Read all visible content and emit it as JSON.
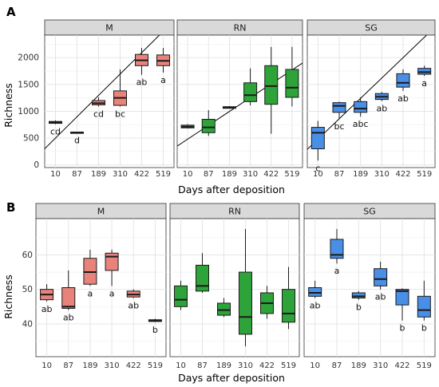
{
  "colors": {
    "M": "#e8837c",
    "RN": "#2ea33a",
    "SG": "#4a8fe6"
  },
  "chart_data": [
    {
      "type": "box",
      "panel_label": "A",
      "xlabel": "Days after deposition",
      "ylabel": "Richness",
      "ylim": [
        -50,
        2420
      ],
      "yticks": [
        0,
        500,
        1000,
        1500,
        2000
      ],
      "categories": [
        "10",
        "87",
        "189",
        "310",
        "422",
        "519"
      ],
      "facets": [
        {
          "name": "M",
          "trendline": [
            [
              10,
              500
            ],
            [
              519,
              2490
            ]
          ],
          "boxes": [
            {
              "x": "10",
              "min": 760,
              "q1": 775,
              "median": 790,
              "q3": 810,
              "max": 830,
              "label": "cd"
            },
            {
              "x": "87",
              "min": 595,
              "q1": 600,
              "median": 605,
              "q3": 610,
              "max": 615,
              "label": "d"
            },
            {
              "x": "189",
              "min": 1090,
              "q1": 1120,
              "median": 1150,
              "q3": 1200,
              "max": 1260,
              "label": "cd"
            },
            {
              "x": "310",
              "min": 1090,
              "q1": 1110,
              "median": 1250,
              "q3": 1380,
              "max": 1780,
              "label": "bc"
            },
            {
              "x": "422",
              "min": 1680,
              "q1": 1850,
              "median": 1950,
              "q3": 2060,
              "max": 2180,
              "label": "ab"
            },
            {
              "x": "519",
              "min": 1720,
              "q1": 1850,
              "median": 1940,
              "q3": 2050,
              "max": 2180,
              "label": "a"
            }
          ]
        },
        {
          "name": "RN",
          "trendline": [
            [
              10,
              480
            ],
            [
              519,
              1770
            ]
          ],
          "boxes": [
            {
              "x": "10",
              "min": 680,
              "q1": 690,
              "median": 710,
              "q3": 740,
              "max": 760,
              "label": ""
            },
            {
              "x": "87",
              "min": 540,
              "q1": 600,
              "median": 700,
              "q3": 850,
              "max": 1020,
              "label": ""
            },
            {
              "x": "189",
              "min": 1050,
              "q1": 1055,
              "median": 1070,
              "q3": 1085,
              "max": 1095,
              "label": ""
            },
            {
              "x": "310",
              "min": 1110,
              "q1": 1180,
              "median": 1300,
              "q3": 1530,
              "max": 1800,
              "label": ""
            },
            {
              "x": "422",
              "min": 580,
              "q1": 1130,
              "median": 1470,
              "q3": 1850,
              "max": 2200,
              "label": ""
            },
            {
              "x": "519",
              "min": 1090,
              "q1": 1260,
              "median": 1440,
              "q3": 1780,
              "max": 2200,
              "label": ""
            }
          ]
        },
        {
          "name": "SG",
          "trendline": [
            [
              10,
              480
            ],
            [
              519,
              2380
            ]
          ],
          "boxes": [
            {
              "x": "10",
              "min": 80,
              "q1": 300,
              "median": 600,
              "q3": 700,
              "max": 820,
              "label": "c"
            },
            {
              "x": "87",
              "min": 860,
              "q1": 980,
              "median": 1100,
              "q3": 1160,
              "max": 1180,
              "label": "bc"
            },
            {
              "x": "189",
              "min": 900,
              "q1": 980,
              "median": 1050,
              "q3": 1180,
              "max": 1260,
              "label": "abc"
            },
            {
              "x": "310",
              "min": 1190,
              "q1": 1220,
              "median": 1270,
              "q3": 1330,
              "max": 1360,
              "label": "ab"
            },
            {
              "x": "422",
              "min": 1380,
              "q1": 1450,
              "median": 1530,
              "q3": 1700,
              "max": 1780,
              "label": "ab"
            },
            {
              "x": "519",
              "min": 1660,
              "q1": 1690,
              "median": 1730,
              "q3": 1800,
              "max": 1850,
              "label": "a"
            }
          ]
        }
      ]
    },
    {
      "type": "box",
      "panel_label": "B",
      "xlabel": "Days after deposition",
      "ylabel": "Richness",
      "ylim": [
        30.5,
        70.5
      ],
      "yticks": [
        40,
        50,
        60
      ],
      "categories": [
        "10",
        "87",
        "189",
        "310",
        "422",
        "519"
      ],
      "facets": [
        {
          "name": "M",
          "boxes": [
            {
              "x": "10",
              "min": 46.5,
              "q1": 47,
              "median": 48.5,
              "q3": 50,
              "max": 51.5,
              "label": "ab"
            },
            {
              "x": "87",
              "min": 44,
              "q1": 44.5,
              "median": 45,
              "q3": 50.5,
              "max": 55.5,
              "label": "ab"
            },
            {
              "x": "189",
              "min": 51,
              "q1": 51.5,
              "median": 55,
              "q3": 59,
              "max": 61.5,
              "label": "a"
            },
            {
              "x": "310",
              "min": 51,
              "q1": 55.5,
              "median": 59.5,
              "q3": 60.5,
              "max": 61.5,
              "label": "a"
            },
            {
              "x": "422",
              "min": 47.5,
              "q1": 47.8,
              "median": 48.5,
              "q3": 49.5,
              "max": 50,
              "label": "ab"
            },
            {
              "x": "519",
              "min": 40.5,
              "q1": 40.7,
              "median": 41,
              "q3": 41.2,
              "max": 41.5,
              "label": "b"
            }
          ]
        },
        {
          "name": "RN",
          "boxes": [
            {
              "x": "10",
              "min": 44,
              "q1": 45,
              "median": 47,
              "q3": 51,
              "max": 52.5,
              "label": ""
            },
            {
              "x": "87",
              "min": 49,
              "q1": 49.5,
              "median": 51,
              "q3": 57,
              "max": 60.5,
              "label": ""
            },
            {
              "x": "189",
              "min": 42,
              "q1": 42.5,
              "median": 44,
              "q3": 46,
              "max": 47.5,
              "label": ""
            },
            {
              "x": "310",
              "min": 33.5,
              "q1": 37,
              "median": 42,
              "q3": 55,
              "max": 67.5,
              "label": ""
            },
            {
              "x": "422",
              "min": 41.5,
              "q1": 43,
              "median": 46,
              "q3": 49,
              "max": 51,
              "label": ""
            },
            {
              "x": "519",
              "min": 38.5,
              "q1": 40.5,
              "median": 43,
              "q3": 50,
              "max": 56.5,
              "label": ""
            }
          ]
        },
        {
          "name": "SG",
          "boxes": [
            {
              "x": "10",
              "min": 47.5,
              "q1": 48,
              "median": 49,
              "q3": 50.5,
              "max": 52.5,
              "label": "ab"
            },
            {
              "x": "87",
              "min": 57.5,
              "q1": 59,
              "median": 60,
              "q3": 64.5,
              "max": 67.5,
              "label": "a"
            },
            {
              "x": "189",
              "min": 47,
              "q1": 47.5,
              "median": 48,
              "q3": 49,
              "max": 49.5,
              "label": "b"
            },
            {
              "x": "310",
              "min": 50,
              "q1": 51,
              "median": 53,
              "q3": 56,
              "max": 58,
              "label": "ab"
            },
            {
              "x": "422",
              "min": 41,
              "q1": 45.5,
              "median": 49.5,
              "q3": 50,
              "max": 50.3,
              "label": "b"
            },
            {
              "x": "519",
              "min": 41,
              "q1": 42,
              "median": 44,
              "q3": 48,
              "max": 52.5,
              "label": "b"
            }
          ]
        }
      ]
    }
  ]
}
